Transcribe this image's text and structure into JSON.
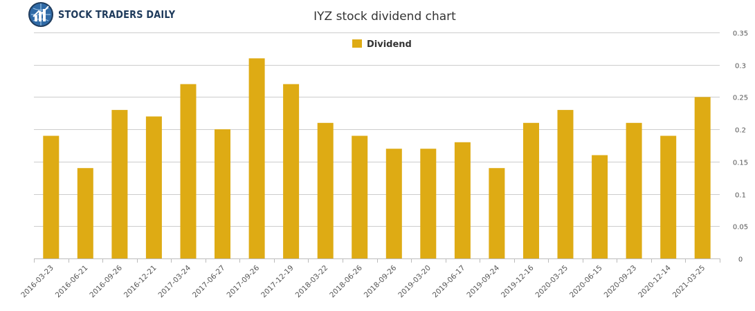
{
  "brand": {
    "name": "STOCK TRADERS DAILY",
    "logo_icon": "chart-globe-icon"
  },
  "chart_data": {
    "type": "bar",
    "title": "IYZ stock dividend chart",
    "legend": {
      "position": "top-center",
      "entries": [
        "Dividend"
      ]
    },
    "categories": [
      "2016-03-23",
      "2016-06-21",
      "2016-09-26",
      "2016-12-21",
      "2017-03-24",
      "2017-06-27",
      "2017-09-26",
      "2017-12-19",
      "2018-03-22",
      "2018-06-26",
      "2018-09-26",
      "2019-03-20",
      "2019-06-17",
      "2019-09-24",
      "2019-12-16",
      "2020-03-25",
      "2020-06-15",
      "2020-09-23",
      "2020-12-14",
      "2021-03-25"
    ],
    "series": [
      {
        "name": "Dividend",
        "color": "#deab14",
        "values": [
          0.19,
          0.14,
          0.23,
          0.22,
          0.27,
          0.2,
          0.31,
          0.27,
          0.21,
          0.19,
          0.17,
          0.17,
          0.18,
          0.14,
          0.21,
          0.23,
          0.16,
          0.21,
          0.19,
          0.25
        ]
      }
    ],
    "ylim": [
      0,
      0.35
    ],
    "yticks": [
      "0",
      "0.05",
      "0.1",
      "0.15",
      "0.2",
      "0.25",
      "0.3",
      "0.35"
    ],
    "y_axis_side": "right",
    "grid": true,
    "xlabel": "",
    "ylabel": ""
  }
}
